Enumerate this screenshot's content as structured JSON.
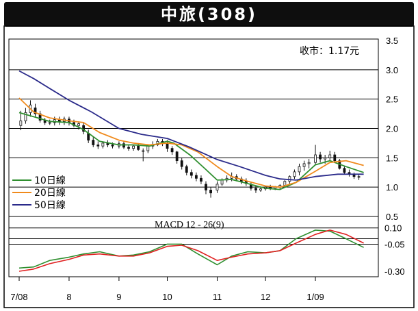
{
  "header": {
    "title": "中旅(308)"
  },
  "colors": {
    "ma10": "#2f8f2f",
    "ma20": "#f08a1c",
    "ma50": "#2a2a8a",
    "macd_line": "#2f8f2f",
    "macd_signal": "#e02020",
    "candle": "#111111",
    "grid": "#000000"
  },
  "chart_data": [
    {
      "type": "candlestick-line",
      "title": "",
      "annotation": "收市：1.17元",
      "x_tick_labels": [
        "7/08",
        "8",
        "9",
        "10",
        "11",
        "12",
        "1/09"
      ],
      "y_tick_labels": [
        "3.5",
        "3.0",
        "2.5",
        "2.0",
        "1.5",
        "1.0",
        "0.5"
      ],
      "ylim": [
        0.5,
        3.5
      ],
      "grid": "horizontal",
      "legend_position": "bottom-left",
      "series": [
        {
          "name": "10日線",
          "color": "#2f8f2f",
          "points": [
            [
              "2008-07-01",
              2.27
            ],
            [
              "2008-07-10",
              2.2
            ],
            [
              "2008-07-20",
              2.12
            ],
            [
              "2008-08-01",
              2.1
            ],
            [
              "2008-08-10",
              1.98
            ],
            [
              "2008-08-20",
              1.78
            ],
            [
              "2008-09-01",
              1.72
            ],
            [
              "2008-09-10",
              1.72
            ],
            [
              "2008-09-20",
              1.7
            ],
            [
              "2008-10-01",
              1.78
            ],
            [
              "2008-10-05",
              1.75
            ],
            [
              "2008-10-15",
              1.55
            ],
            [
              "2008-10-25",
              1.3
            ],
            [
              "2008-11-01",
              1.12
            ],
            [
              "2008-11-10",
              1.13
            ],
            [
              "2008-11-20",
              1.06
            ],
            [
              "2008-12-01",
              0.98
            ],
            [
              "2008-12-10",
              0.96
            ],
            [
              "2008-12-20",
              1.08
            ],
            [
              "2009-01-01",
              1.38
            ],
            [
              "2009-01-10",
              1.45
            ],
            [
              "2009-01-20",
              1.35
            ],
            [
              "2009-01-31",
              1.25
            ]
          ]
        },
        {
          "name": "20日線",
          "color": "#f08a1c",
          "points": [
            [
              "2008-07-01",
              2.52
            ],
            [
              "2008-07-10",
              2.28
            ],
            [
              "2008-07-20",
              2.18
            ],
            [
              "2008-08-01",
              2.13
            ],
            [
              "2008-08-10",
              2.1
            ],
            [
              "2008-08-20",
              1.93
            ],
            [
              "2008-09-01",
              1.8
            ],
            [
              "2008-09-10",
              1.75
            ],
            [
              "2008-09-20",
              1.72
            ],
            [
              "2008-10-01",
              1.75
            ],
            [
              "2008-10-10",
              1.72
            ],
            [
              "2008-10-20",
              1.6
            ],
            [
              "2008-11-01",
              1.35
            ],
            [
              "2008-11-10",
              1.18
            ],
            [
              "2008-11-20",
              1.1
            ],
            [
              "2008-12-01",
              1.02
            ],
            [
              "2008-12-10",
              1.0
            ],
            [
              "2008-12-20",
              1.08
            ],
            [
              "2009-01-01",
              1.27
            ],
            [
              "2009-01-10",
              1.42
            ],
            [
              "2009-01-20",
              1.45
            ],
            [
              "2009-01-31",
              1.37
            ]
          ]
        },
        {
          "name": "50日線",
          "color": "#2a2a8a",
          "points": [
            [
              "2008-07-01",
              2.98
            ],
            [
              "2008-07-10",
              2.85
            ],
            [
              "2008-07-20",
              2.68
            ],
            [
              "2008-08-01",
              2.48
            ],
            [
              "2008-08-15",
              2.28
            ],
            [
              "2008-09-01",
              2.0
            ],
            [
              "2008-09-15",
              1.9
            ],
            [
              "2008-10-01",
              1.83
            ],
            [
              "2008-10-15",
              1.68
            ],
            [
              "2008-11-01",
              1.47
            ],
            [
              "2008-11-15",
              1.35
            ],
            [
              "2008-12-01",
              1.2
            ],
            [
              "2008-12-10",
              1.14
            ],
            [
              "2008-12-20",
              1.12
            ],
            [
              "2009-01-01",
              1.18
            ],
            [
              "2009-01-15",
              1.22
            ],
            [
              "2009-01-31",
              1.22
            ]
          ]
        }
      ],
      "candles": {
        "color": "#111111",
        "points": [
          [
            "2008-07-02",
            2.05,
            2.3,
            1.97,
            2.13
          ],
          [
            "2008-07-05",
            2.13,
            2.35,
            2.08,
            2.27
          ],
          [
            "2008-07-08",
            2.27,
            2.48,
            2.2,
            2.4
          ],
          [
            "2008-07-11",
            2.35,
            2.42,
            2.2,
            2.25
          ],
          [
            "2008-07-14",
            2.25,
            2.3,
            2.1,
            2.14
          ],
          [
            "2008-07-17",
            2.14,
            2.18,
            2.06,
            2.1
          ],
          [
            "2008-07-20",
            2.1,
            2.15,
            2.06,
            2.1
          ],
          [
            "2008-07-23",
            2.1,
            2.2,
            2.05,
            2.15
          ],
          [
            "2008-07-26",
            2.15,
            2.2,
            2.06,
            2.12
          ],
          [
            "2008-07-29",
            2.12,
            2.2,
            2.06,
            2.16
          ],
          [
            "2008-08-01",
            2.16,
            2.2,
            2.05,
            2.1
          ],
          [
            "2008-08-04",
            2.1,
            2.15,
            2.02,
            2.05
          ],
          [
            "2008-08-07",
            2.05,
            2.12,
            1.98,
            2.08
          ],
          [
            "2008-08-10",
            2.05,
            2.1,
            1.9,
            1.95
          ],
          [
            "2008-08-13",
            1.92,
            1.98,
            1.75,
            1.8
          ],
          [
            "2008-08-16",
            1.8,
            1.85,
            1.68,
            1.72
          ],
          [
            "2008-08-19",
            1.72,
            1.78,
            1.65,
            1.7
          ],
          [
            "2008-08-22",
            1.7,
            1.78,
            1.66,
            1.75
          ],
          [
            "2008-08-25",
            1.75,
            1.8,
            1.68,
            1.72
          ],
          [
            "2008-08-28",
            1.72,
            1.76,
            1.66,
            1.7
          ],
          [
            "2008-09-01",
            1.7,
            1.78,
            1.66,
            1.74
          ],
          [
            "2008-09-04",
            1.74,
            1.78,
            1.65,
            1.68
          ],
          [
            "2008-09-07",
            1.68,
            1.72,
            1.62,
            1.66
          ],
          [
            "2008-09-10",
            1.66,
            1.72,
            1.62,
            1.7
          ],
          [
            "2008-09-13",
            1.7,
            1.75,
            1.62,
            1.64
          ],
          [
            "2008-09-16",
            1.62,
            1.66,
            1.44,
            1.62
          ],
          [
            "2008-09-19",
            1.62,
            1.72,
            1.58,
            1.7
          ],
          [
            "2008-09-22",
            1.7,
            1.78,
            1.65,
            1.72
          ],
          [
            "2008-09-25",
            1.72,
            1.82,
            1.7,
            1.78
          ],
          [
            "2008-09-28",
            1.78,
            1.82,
            1.7,
            1.74
          ],
          [
            "2008-10-01",
            1.74,
            1.8,
            1.6,
            1.66
          ],
          [
            "2008-10-04",
            1.66,
            1.7,
            1.55,
            1.6
          ],
          [
            "2008-10-07",
            1.6,
            1.62,
            1.4,
            1.45
          ],
          [
            "2008-10-10",
            1.45,
            1.5,
            1.3,
            1.35
          ],
          [
            "2008-10-13",
            1.35,
            1.38,
            1.2,
            1.25
          ],
          [
            "2008-10-16",
            1.25,
            1.3,
            1.15,
            1.2
          ],
          [
            "2008-10-19",
            1.2,
            1.25,
            1.1,
            1.15
          ],
          [
            "2008-10-22",
            1.15,
            1.2,
            1.05,
            1.1
          ],
          [
            "2008-10-25",
            1.05,
            1.1,
            0.88,
            0.95
          ],
          [
            "2008-10-28",
            0.95,
            1.0,
            0.82,
            0.9
          ],
          [
            "2008-11-01",
            0.95,
            1.1,
            0.9,
            1.05
          ],
          [
            "2008-11-04",
            1.05,
            1.15,
            1.02,
            1.12
          ],
          [
            "2008-11-07",
            1.12,
            1.2,
            1.08,
            1.15
          ],
          [
            "2008-11-10",
            1.15,
            1.25,
            1.1,
            1.18
          ],
          [
            "2008-11-13",
            1.18,
            1.22,
            1.1,
            1.14
          ],
          [
            "2008-11-16",
            1.14,
            1.18,
            1.05,
            1.1
          ],
          [
            "2008-11-19",
            1.1,
            1.15,
            1.02,
            1.06
          ],
          [
            "2008-11-22",
            1.04,
            1.08,
            0.94,
            0.98
          ],
          [
            "2008-11-25",
            0.98,
            1.02,
            0.9,
            0.95
          ],
          [
            "2008-11-28",
            0.95,
            1.0,
            0.92,
            0.97
          ],
          [
            "2008-12-01",
            0.97,
            1.02,
            0.94,
            1.0
          ],
          [
            "2008-12-04",
            1.0,
            1.04,
            0.95,
            0.98
          ],
          [
            "2008-12-07",
            0.98,
            1.02,
            0.95,
            1.0
          ],
          [
            "2008-12-10",
            1.0,
            1.05,
            0.96,
            1.03
          ],
          [
            "2008-12-13",
            1.03,
            1.12,
            1.0,
            1.1
          ],
          [
            "2008-12-16",
            1.1,
            1.2,
            1.06,
            1.18
          ],
          [
            "2008-12-19",
            1.18,
            1.3,
            1.14,
            1.26
          ],
          [
            "2008-12-22",
            1.26,
            1.4,
            1.2,
            1.35
          ],
          [
            "2008-12-25",
            1.35,
            1.45,
            1.28,
            1.4
          ],
          [
            "2008-12-28",
            1.4,
            1.48,
            1.32,
            1.42
          ],
          [
            "2009-01-01",
            1.42,
            1.72,
            1.38,
            1.55
          ],
          [
            "2009-01-04",
            1.55,
            1.6,
            1.42,
            1.48
          ],
          [
            "2009-01-07",
            1.48,
            1.55,
            1.4,
            1.5
          ],
          [
            "2009-01-10",
            1.5,
            1.62,
            1.45,
            1.55
          ],
          [
            "2009-01-13",
            1.55,
            1.6,
            1.42,
            1.45
          ],
          [
            "2009-01-16",
            1.45,
            1.48,
            1.3,
            1.32
          ],
          [
            "2009-01-19",
            1.32,
            1.35,
            1.22,
            1.25
          ],
          [
            "2009-01-22",
            1.25,
            1.3,
            1.18,
            1.22
          ],
          [
            "2009-01-25",
            1.22,
            1.25,
            1.14,
            1.18
          ],
          [
            "2009-01-28",
            1.18,
            1.22,
            1.12,
            1.17
          ]
        ]
      }
    },
    {
      "type": "line",
      "title": "MACD 12 - 26(9)",
      "y_tick_labels": [
        "0.10",
        "-0.05",
        "-0.30"
      ],
      "grid": "horizontal",
      "series": [
        {
          "color": "#2f8f2f",
          "points": [
            [
              "2008-07-01",
              -0.27
            ],
            [
              "2008-07-10",
              -0.26
            ],
            [
              "2008-07-20",
              -0.2
            ],
            [
              "2008-08-01",
              -0.17
            ],
            [
              "2008-08-10",
              -0.14
            ],
            [
              "2008-08-20",
              -0.12
            ],
            [
              "2008-09-01",
              -0.16
            ],
            [
              "2008-09-10",
              -0.15
            ],
            [
              "2008-09-20",
              -0.12
            ],
            [
              "2008-10-01",
              -0.05
            ],
            [
              "2008-10-10",
              -0.05
            ],
            [
              "2008-10-20",
              -0.14
            ],
            [
              "2008-11-01",
              -0.24
            ],
            [
              "2008-11-10",
              -0.16
            ],
            [
              "2008-11-20",
              -0.12
            ],
            [
              "2008-12-01",
              -0.13
            ],
            [
              "2008-12-10",
              -0.11
            ],
            [
              "2008-12-20",
              0.0
            ],
            [
              "2009-01-01",
              0.08
            ],
            [
              "2009-01-10",
              0.07
            ],
            [
              "2009-01-20",
              0.0
            ],
            [
              "2009-01-31",
              -0.08
            ]
          ]
        },
        {
          "color": "#e02020",
          "points": [
            [
              "2008-07-01",
              -0.3
            ],
            [
              "2008-07-10",
              -0.28
            ],
            [
              "2008-07-20",
              -0.23
            ],
            [
              "2008-08-01",
              -0.19
            ],
            [
              "2008-08-10",
              -0.15
            ],
            [
              "2008-08-20",
              -0.14
            ],
            [
              "2008-09-01",
              -0.16
            ],
            [
              "2008-09-10",
              -0.16
            ],
            [
              "2008-09-20",
              -0.13
            ],
            [
              "2008-10-01",
              -0.07
            ],
            [
              "2008-10-10",
              -0.06
            ],
            [
              "2008-10-20",
              -0.11
            ],
            [
              "2008-11-01",
              -0.2
            ],
            [
              "2008-11-10",
              -0.17
            ],
            [
              "2008-11-20",
              -0.14
            ],
            [
              "2008-12-01",
              -0.13
            ],
            [
              "2008-12-10",
              -0.11
            ],
            [
              "2008-12-20",
              -0.04
            ],
            [
              "2009-01-01",
              0.04
            ],
            [
              "2009-01-10",
              0.08
            ],
            [
              "2009-01-20",
              0.04
            ],
            [
              "2009-01-31",
              -0.04
            ]
          ]
        }
      ]
    }
  ]
}
